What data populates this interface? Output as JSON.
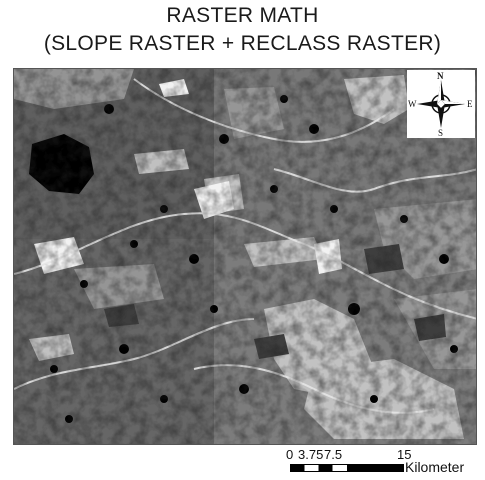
{
  "title": {
    "line1": "RASTER MATH",
    "line2": "(SLOPE RASTER + RECLASS RASTER)"
  },
  "north_arrow": {
    "n": "N",
    "s": "S",
    "w": "W",
    "e": "E",
    "icon": "compass-rose-icon"
  },
  "scale_bar": {
    "ticks": [
      "0",
      "3.75",
      "7.5",
      "15"
    ],
    "unit": "Kilometer"
  },
  "colors": {
    "map_base": "#707070",
    "light_class": "#c8c8c8",
    "mid_class": "#8e8e8e",
    "dark_class": "#4a4a4a",
    "black_class": "#000000",
    "white_class": "#f4f4f4"
  }
}
